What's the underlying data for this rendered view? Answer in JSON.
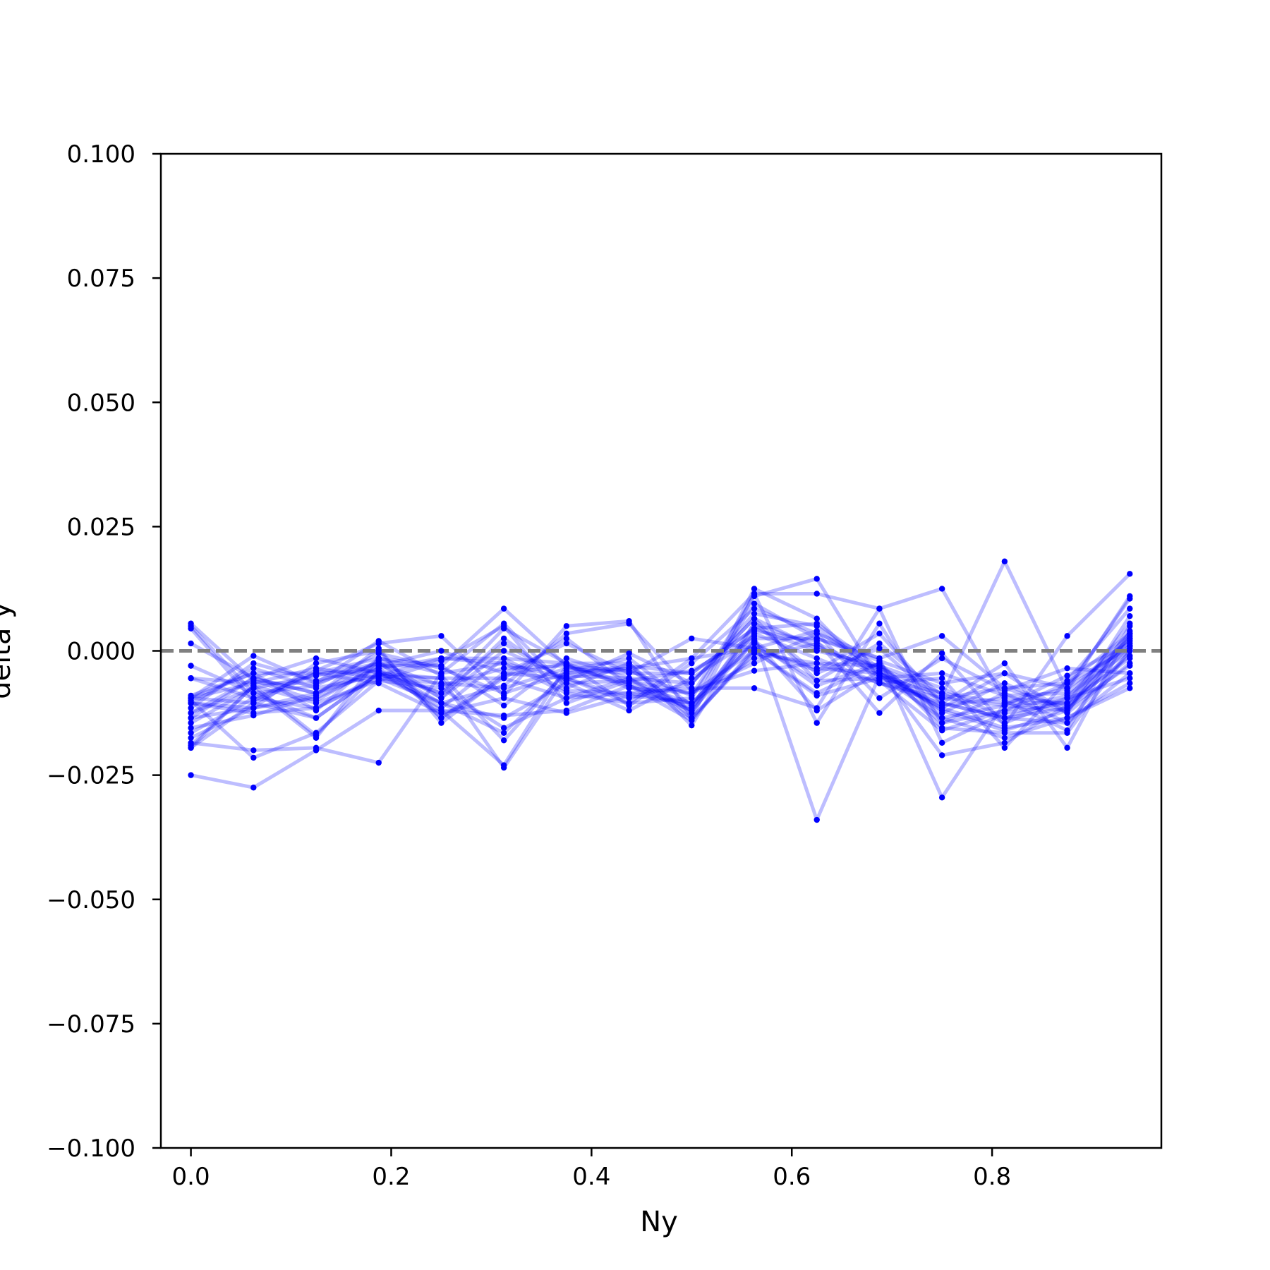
{
  "chart_data": {
    "type": "line",
    "title": "",
    "xlabel": "Ny",
    "ylabel": "delta y",
    "xlim": [
      -0.03,
      0.969
    ],
    "ylim": [
      -0.1,
      0.1
    ],
    "xticks": [
      0.0,
      0.2,
      0.4,
      0.6,
      0.8
    ],
    "xtick_labels": [
      "0.0",
      "0.2",
      "0.4",
      "0.6",
      "0.8"
    ],
    "yticks": [
      -0.1,
      -0.075,
      -0.05,
      -0.025,
      0.0,
      0.025,
      0.05,
      0.075,
      0.1
    ],
    "ytick_labels": [
      "−0.100",
      "−0.075",
      "−0.050",
      "−0.025",
      "0.000",
      "0.025",
      "0.050",
      "0.075",
      "0.100"
    ],
    "grid": false,
    "series_color": "#0000ff",
    "reference_line": {
      "y": 0.0,
      "style": "dashed",
      "color": "#808080"
    },
    "x": [
      0.0,
      0.0625,
      0.125,
      0.1875,
      0.25,
      0.3125,
      0.375,
      0.4375,
      0.5,
      0.5625,
      0.625,
      0.6875,
      0.75,
      0.8125,
      0.875,
      0.9375
    ],
    "series": [
      {
        "values": [
          -0.025,
          -0.0275,
          -0.02,
          -0.012,
          -0.012,
          -0.013,
          -0.012,
          -0.007,
          -0.012,
          0.002,
          -0.012,
          -0.004,
          -0.012,
          -0.016,
          -0.012,
          0.003
        ]
      },
      {
        "values": [
          0.0055,
          -0.006,
          -0.01,
          -0.003,
          -0.003,
          0.0085,
          -0.003,
          -0.004,
          -0.009,
          0.011,
          0.0145,
          -0.006,
          -0.016,
          -0.012,
          -0.009,
          0.0
        ]
      },
      {
        "values": [
          -0.019,
          -0.007,
          -0.017,
          -0.004,
          -0.012,
          -0.023,
          -0.003,
          -0.007,
          -0.014,
          0.0005,
          0.004,
          -0.004,
          -0.021,
          -0.0185,
          -0.011,
          -0.001
        ]
      },
      {
        "values": [
          0.0045,
          -0.01,
          -0.004,
          0.0015,
          0.003,
          -0.009,
          0.005,
          0.006,
          -0.0135,
          0.0115,
          0.0115,
          0.0085,
          0.0125,
          -0.01,
          -0.016,
          0.005
        ]
      },
      {
        "values": [
          -0.01,
          -0.0215,
          -0.0165,
          -0.006,
          -0.002,
          0.005,
          -0.0105,
          -0.006,
          -0.004,
          0.003,
          -0.034,
          -0.005,
          -0.0135,
          -0.011,
          -0.012,
          0.001
        ]
      },
      {
        "values": [
          -0.0125,
          -0.0055,
          -0.0015,
          -0.0045,
          -0.0085,
          0.0015,
          -0.006,
          -0.0005,
          -0.0065,
          0.0065,
          -0.006,
          0.0015,
          -0.009,
          0.018,
          -0.008,
          0.011
        ]
      },
      {
        "values": [
          -0.0155,
          -0.013,
          -0.009,
          0.0005,
          -0.0145,
          -0.005,
          -0.0025,
          -0.011,
          -0.0025,
          0.0085,
          0.0035,
          -0.0095,
          -0.0015,
          -0.008,
          -0.0035,
          -0.0045
        ]
      },
      {
        "values": [
          -0.0095,
          -0.001,
          -0.0065,
          0.002,
          -0.005,
          -0.018,
          -0.004,
          -0.0015,
          -0.011,
          0.004,
          0.002,
          -0.0125,
          -0.0005,
          -0.015,
          0.003,
          0.0155
        ]
      },
      {
        "values": [
          -0.0185,
          -0.02,
          -0.0195,
          -0.0225,
          -0.0045,
          0.0055,
          -0.0075,
          -0.0025,
          -0.015,
          0.0055,
          0.001,
          -0.005,
          -0.0115,
          -0.0045,
          -0.0125,
          0.007
        ]
      },
      {
        "values": [
          -0.0055,
          -0.0095,
          -0.0115,
          -0.0055,
          -0.0105,
          -0.007,
          0.0035,
          0.0055,
          -0.008,
          -0.004,
          -0.0025,
          -0.003,
          -0.0075,
          -0.0135,
          -0.0145,
          0.0
        ]
      },
      {
        "values": [
          0.0015,
          -0.0055,
          -0.0085,
          -0.0035,
          -0.0015,
          -0.0025,
          -0.0085,
          -0.0105,
          -0.0015,
          0.0115,
          -0.0145,
          0.0055,
          -0.0145,
          -0.012,
          -0.0065,
          0.0035
        ]
      },
      {
        "values": [
          -0.0105,
          -0.0115,
          -0.0025,
          0.0,
          -0.0135,
          -0.0045,
          0.0015,
          -0.0045,
          0.0025,
          0.0005,
          -0.004,
          0.0035,
          -0.0105,
          -0.0025,
          -0.0195,
          0.004
        ]
      },
      {
        "values": [
          -0.003,
          -0.0085,
          -0.0135,
          -0.0045,
          -0.0055,
          -0.0235,
          -0.005,
          -0.0055,
          -0.012,
          0.0125,
          0.0065,
          -0.0065,
          -0.0055,
          -0.0195,
          -0.006,
          0.0085
        ]
      },
      {
        "values": [
          -0.009,
          -0.0045,
          -0.012,
          -0.0015,
          -0.0095,
          0.0025,
          -0.0065,
          -0.012,
          -0.0055,
          0.0025,
          0.0025,
          -0.0015,
          -0.0295,
          -0.0105,
          -0.0075,
          0.001
        ]
      },
      {
        "values": [
          -0.0145,
          -0.0075,
          -0.005,
          -0.0025,
          -0.007,
          -0.0035,
          -0.003,
          -0.0065,
          -0.0105,
          0.0015,
          -0.006,
          -0.0055,
          -0.0085,
          -0.0145,
          -0.0095,
          -0.0055
        ]
      },
      {
        "values": [
          -0.0105,
          -0.0035,
          -0.0075,
          -0.005,
          -0.0015,
          -0.0015,
          -0.008,
          -0.0085,
          -0.0075,
          -0.0075,
          -0.0115,
          0.0085,
          -0.0185,
          -0.0125,
          -0.0105,
          0.0055
        ]
      },
      {
        "values": [
          -0.0135,
          -0.0115,
          -0.0095,
          -0.0035,
          -0.0105,
          -0.0165,
          -0.0045,
          -0.003,
          -0.0045,
          0.0045,
          0.0,
          -0.003,
          -0.0125,
          -0.0065,
          -0.0125,
          -0.0025
        ]
      },
      {
        "values": [
          -0.0195,
          -0.0105,
          -0.0045,
          -0.0065,
          -0.0125,
          -0.0095,
          -0.0125,
          -0.009,
          -0.0105,
          0.002,
          -0.007,
          -0.0025,
          -0.0135,
          -0.0175,
          -0.0135,
          -0.0075
        ]
      },
      {
        "values": [
          -0.0125,
          -0.0075,
          -0.0175,
          -0.0015,
          -0.003,
          -0.011,
          -0.0015,
          -0.0055,
          -0.0135,
          0.0,
          -0.009,
          -0.0055,
          -0.0045,
          -0.009,
          -0.0085,
          0.0025
        ]
      },
      {
        "values": [
          -0.0165,
          -0.0095,
          -0.0045,
          -0.004,
          -0.0085,
          0.0045,
          -0.0025,
          -0.0075,
          -0.0085,
          -0.0025,
          0.0035,
          -0.0015,
          0.003,
          -0.0075,
          -0.0115,
          -0.003
        ]
      },
      {
        "values": [
          -0.0095,
          -0.0065,
          -0.0065,
          -0.0025,
          -0.0095,
          0.0,
          -0.0055,
          -0.0095,
          -0.0065,
          0.0075,
          0.005,
          -0.0045,
          -0.011,
          -0.0095,
          -0.0105,
          -0.0015
        ]
      },
      {
        "values": [
          -0.0105,
          -0.0125,
          -0.0115,
          -0.005,
          -0.0055,
          -0.0055,
          0.0025,
          -0.007,
          -0.0115,
          0.0035,
          -0.0015,
          -0.0065,
          -0.0095,
          -0.011,
          -0.005,
          0.0015
        ]
      },
      {
        "values": [
          0.005,
          -0.0085,
          -0.007,
          -0.0005,
          -0.0035,
          -0.0085,
          -0.0045,
          -0.0035,
          -0.0125,
          0.0055,
          -0.0045,
          0.0005,
          -0.0105,
          -0.0135,
          -0.0115,
          0.002
        ]
      },
      {
        "values": [
          -0.0135,
          -0.0055,
          -0.0085,
          -0.002,
          -0.0135,
          -0.0055,
          -0.0095,
          -0.0085,
          -0.0105,
          -0.0015,
          0.0015,
          -0.0045,
          -0.0115,
          -0.0155,
          -0.0135,
          -0.0065
        ]
      },
      {
        "values": [
          -0.0095,
          -0.0105,
          -0.0135,
          -0.0045,
          -0.0105,
          -0.0135,
          -0.0065,
          -0.006,
          -0.0085,
          0.0,
          -0.0085,
          -0.0025,
          -0.0155,
          -0.0165,
          -0.0165,
          0.0
        ]
      },
      {
        "values": [
          -0.0055,
          -0.0065,
          -0.0035,
          -0.0055,
          -0.0065,
          -0.0075,
          -0.0035,
          -0.0045,
          -0.0045,
          0.0045,
          0.0055,
          -0.0035,
          -0.0085,
          -0.0105,
          -0.0105,
          0.0025
        ]
      },
      {
        "values": [
          -0.0115,
          -0.0025,
          -0.006,
          -0.003,
          0.0,
          -0.0045,
          -0.0055,
          -0.0105,
          -0.0095,
          0.0095,
          0.0025,
          -0.002,
          -0.0065,
          -0.0045,
          -0.0075,
          0.0105
        ]
      },
      {
        "values": [
          -0.0175,
          -0.0115,
          -0.0085,
          -0.0045,
          -0.0115,
          -0.0015,
          -0.0025,
          -0.0025,
          -0.0135,
          -0.0005,
          -0.0025,
          -0.0065,
          -0.0105,
          -0.0135,
          -0.0095,
          0.0035
        ]
      },
      {
        "values": [
          -0.0195,
          -0.007,
          -0.0105,
          -0.006,
          -0.0075,
          -0.0155,
          -0.0095,
          -0.0055,
          -0.0065,
          0.0065,
          0.0005,
          -0.0035,
          -0.0145,
          -0.0085,
          -0.0145,
          -0.0045
        ]
      },
      {
        "values": [
          -0.0095,
          -0.0045,
          -0.0045,
          -0.0015,
          -0.0045,
          -0.0025,
          -0.0055,
          -0.0035,
          -0.0015,
          0.0005,
          -0.0035,
          -0.0045,
          -0.0095,
          -0.0075,
          -0.0065,
          0.0005
        ]
      }
    ]
  }
}
